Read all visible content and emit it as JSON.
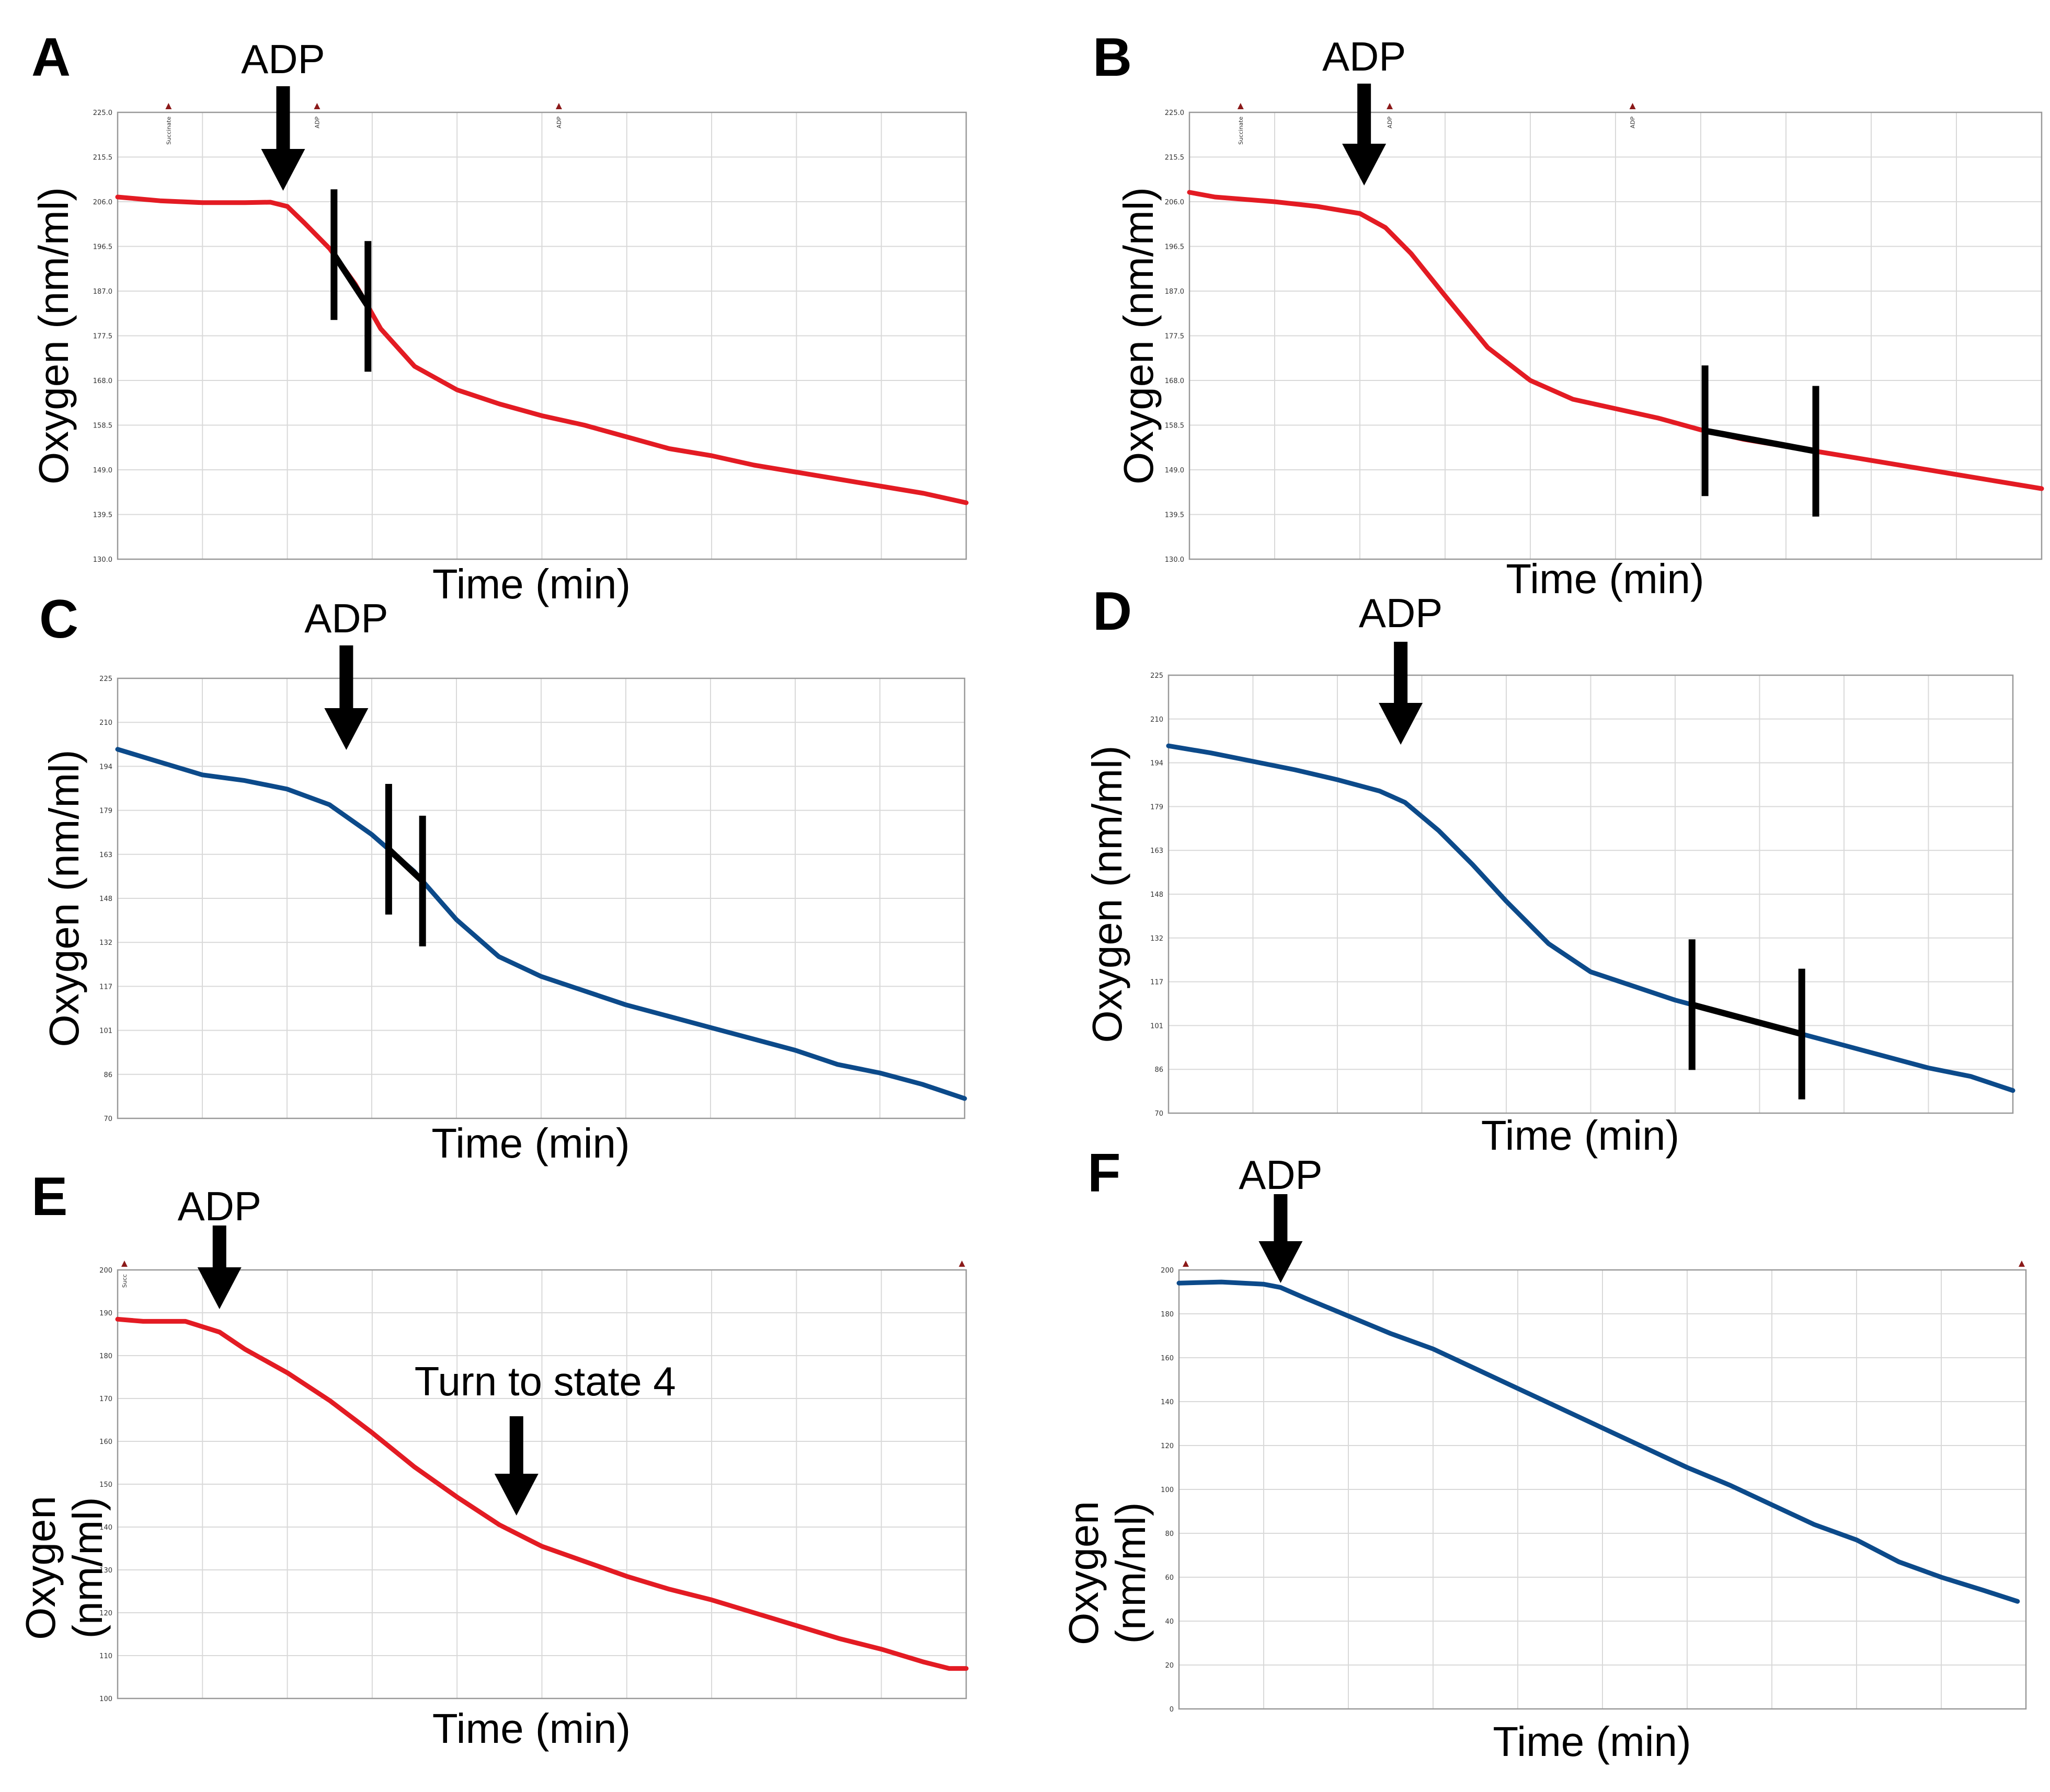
{
  "colors": {
    "red": "#e31b23",
    "blue": "#0c4a8a",
    "black": "#000000",
    "grid": "#d9d9d9",
    "frame": "#999999",
    "marker": "#8b1a1a"
  },
  "chart_data": [
    {
      "panel": "A",
      "type": "line",
      "color": "red",
      "ylabel": "Oxygen (nm/ml)",
      "xlabel": "Time (min)",
      "ylim": [
        130.0,
        225.0
      ],
      "yticks": [
        "130.0",
        "139.5",
        "149.0",
        "158.5",
        "168.0",
        "177.5",
        "187.0",
        "196.5",
        "206.0",
        "215.5",
        "225.0"
      ],
      "x_divisions": 10,
      "markers": [
        {
          "x": 0.6,
          "label": "Succinate"
        },
        {
          "x": 2.35,
          "label": "ADP"
        },
        {
          "x": 5.2,
          "label": "ADP"
        }
      ],
      "annotations": [
        {
          "type": "arrow",
          "text": "ADP",
          "x": 1.95
        }
      ],
      "slope": {
        "x1": 2.55,
        "x2": 2.95
      },
      "series": [
        {
          "x": [
            0,
            0.5,
            1,
            1.5,
            1.8,
            2.0,
            2.2,
            2.5,
            2.8,
            3.1,
            3.5,
            4.0,
            4.5,
            5.0,
            5.5,
            6.0,
            6.5,
            7.0,
            7.5,
            8.0,
            8.5,
            9.0,
            9.5,
            10.0
          ],
          "y": [
            207,
            206.2,
            205.8,
            205.8,
            205.9,
            205,
            201.5,
            196,
            188.5,
            179,
            171,
            166,
            163,
            160.5,
            158.5,
            156,
            153.5,
            152,
            150,
            148.5,
            147,
            145.5,
            144,
            142
          ]
        }
      ]
    },
    {
      "panel": "B",
      "type": "line",
      "color": "red",
      "ylabel": "Oxygen (nm/ml)",
      "xlabel": "Time (min)",
      "ylim": [
        130.0,
        225.0
      ],
      "yticks": [
        "130.0",
        "139.5",
        "149.0",
        "158.5",
        "168.0",
        "177.5",
        "187.0",
        "196.5",
        "206.0",
        "215.5",
        "225.0"
      ],
      "x_divisions": 10,
      "markers": [
        {
          "x": 0.6,
          "label": "Succinate"
        },
        {
          "x": 2.35,
          "label": "ADP"
        },
        {
          "x": 5.2,
          "label": "ADP"
        }
      ],
      "annotations": [
        {
          "type": "arrow",
          "text": "ADP",
          "x": 2.05
        }
      ],
      "slope": {
        "x1": 6.05,
        "x2": 7.35
      },
      "series": [
        {
          "x": [
            0,
            0.3,
            1,
            1.5,
            2.0,
            2.3,
            2.6,
            3.0,
            3.5,
            4.0,
            4.5,
            5.0,
            5.5,
            6.0,
            6.5,
            7.0,
            7.5,
            8.0,
            8.5,
            9.0,
            9.5,
            10.0
          ],
          "y": [
            208,
            207,
            206,
            205,
            203.5,
            200.5,
            195,
            186,
            175,
            168,
            164,
            162,
            160,
            157.5,
            155.5,
            154,
            152.5,
            151,
            149.5,
            148,
            146.5,
            145
          ]
        }
      ]
    },
    {
      "panel": "C",
      "type": "line",
      "color": "blue",
      "ylabel": "Oxygen (nm/ml)",
      "xlabel": "Time (min)",
      "ylim": [
        70,
        225
      ],
      "yticks": [
        "70",
        "86",
        "101",
        "117",
        "132",
        "148",
        "163",
        "179",
        "194",
        "210",
        "225"
      ],
      "x_divisions": 10,
      "markers": [],
      "annotations": [
        {
          "type": "arrow",
          "text": "ADP",
          "x": 2.7
        }
      ],
      "slope": {
        "x1": 3.2,
        "x2": 3.6
      },
      "series": [
        {
          "x": [
            0,
            0.5,
            1,
            1.5,
            2.0,
            2.5,
            3.0,
            3.5,
            4.0,
            4.5,
            5.0,
            5.5,
            6.0,
            6.5,
            7.0,
            7.5,
            8.0,
            8.5,
            9.0,
            9.5,
            10.0
          ],
          "y": [
            200,
            195.5,
            191,
            189,
            186,
            180.5,
            170,
            157,
            140,
            127,
            120,
            115,
            110,
            106,
            102,
            98,
            94,
            89,
            86,
            82,
            77
          ]
        }
      ]
    },
    {
      "panel": "D",
      "type": "line",
      "color": "blue",
      "ylabel": "Oxygen (nm/ml)",
      "xlabel": "Time (min)",
      "ylim": [
        70,
        225
      ],
      "yticks": [
        "70",
        "86",
        "101",
        "117",
        "132",
        "148",
        "163",
        "179",
        "194",
        "210",
        "225"
      ],
      "x_divisions": 10,
      "markers": [],
      "annotations": [
        {
          "type": "arrow",
          "text": "ADP",
          "x": 2.75
        }
      ],
      "slope": {
        "x1": 6.2,
        "x2": 7.5
      },
      "series": [
        {
          "x": [
            0,
            0.5,
            1,
            1.5,
            2.0,
            2.5,
            2.8,
            3.2,
            3.6,
            4.0,
            4.5,
            5.0,
            5.5,
            6.0,
            6.5,
            7.0,
            7.5,
            8.0,
            8.5,
            9.0,
            9.5,
            10.0
          ],
          "y": [
            200,
            197.5,
            194.5,
            191.5,
            188,
            184,
            180,
            170,
            158,
            145,
            130,
            120,
            115,
            110,
            106,
            102,
            98,
            94,
            90,
            86,
            83,
            78
          ]
        }
      ]
    },
    {
      "panel": "E",
      "type": "line",
      "color": "red",
      "ylabel": "Oxygen (nm/ml)",
      "xlabel": "Time (min)",
      "ylim": [
        100,
        200
      ],
      "yticks": [
        "100",
        "110",
        "120",
        "130",
        "140",
        "150",
        "160",
        "170",
        "180",
        "190",
        "200"
      ],
      "x_divisions": 10,
      "markers": [
        {
          "x": 0.08,
          "label": "Succ"
        },
        {
          "x": 9.95,
          "label": ""
        }
      ],
      "annotations": [
        {
          "type": "arrow",
          "text": "ADP",
          "x": 1.2
        },
        {
          "type": "arrow",
          "text": "Turn to state 4",
          "x": 4.7
        }
      ],
      "series": [
        {
          "x": [
            0,
            0.3,
            0.8,
            1.2,
            1.5,
            2.0,
            2.5,
            3.0,
            3.5,
            4.0,
            4.5,
            5.0,
            5.5,
            6.0,
            6.5,
            7.0,
            7.5,
            8.0,
            8.5,
            9.0,
            9.5,
            9.8,
            10.0
          ],
          "y": [
            188.5,
            188,
            188,
            185.5,
            181.5,
            176,
            169.5,
            162,
            154,
            147,
            140.5,
            135.5,
            132,
            128.5,
            125.5,
            123,
            120,
            117,
            114,
            111.5,
            108.5,
            107,
            107
          ]
        }
      ]
    },
    {
      "panel": "F",
      "type": "line",
      "color": "blue",
      "ylabel": "Oxygen (nm/ml)",
      "xlabel": "Time (min)",
      "ylim": [
        0,
        200
      ],
      "yticks": [
        "0",
        "20",
        "40",
        "60",
        "80",
        "100",
        "120",
        "140",
        "160",
        "180",
        "200"
      ],
      "x_divisions": 10,
      "markers": [
        {
          "x": 0.08,
          "label": ""
        },
        {
          "x": 9.95,
          "label": ""
        }
      ],
      "annotations": [
        {
          "type": "arrow",
          "text": "ADP",
          "x": 1.2
        }
      ],
      "series": [
        {
          "x": [
            0,
            0.5,
            1.0,
            1.2,
            1.5,
            2.0,
            2.5,
            3.0,
            3.5,
            4.0,
            4.5,
            5.0,
            5.5,
            6.0,
            6.5,
            7.0,
            7.5,
            8.0,
            8.5,
            9.0,
            9.5,
            9.9
          ],
          "y": [
            194,
            194.5,
            193.5,
            192,
            187,
            179,
            171,
            164,
            155,
            146,
            137,
            128,
            119,
            110,
            102,
            93,
            84,
            77,
            67,
            60,
            54,
            49
          ]
        }
      ]
    }
  ]
}
